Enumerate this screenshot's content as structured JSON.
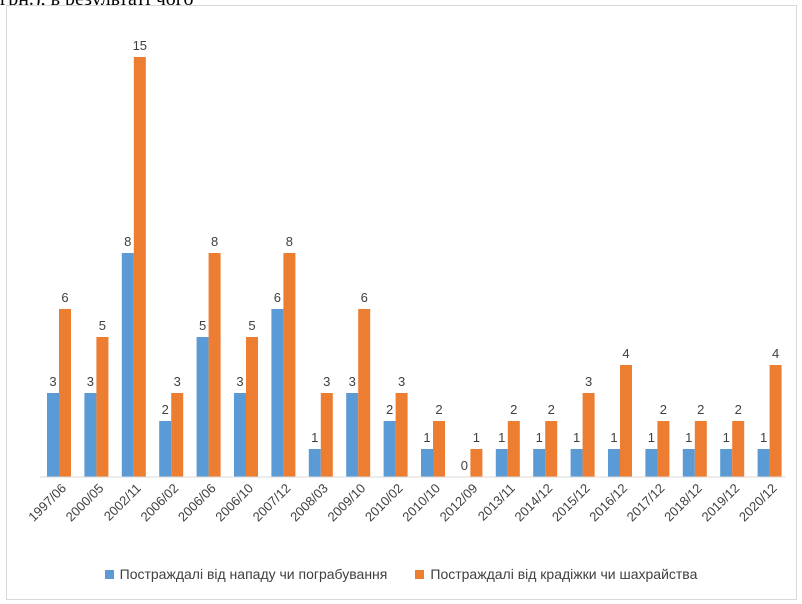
{
  "caption": "грн.), в результаті чого",
  "chart_data": {
    "type": "bar",
    "categories": [
      "1997/06",
      "2000/05",
      "2002/11",
      "2006/02",
      "2006/06",
      "2006/10",
      "2007/12",
      "2008/03",
      "2009/10",
      "2010/02",
      "2010/10",
      "2012/09",
      "2013/11",
      "2014/12",
      "2015/12",
      "2016/12",
      "2017/12",
      "2018/12",
      "2019/12",
      "2020/12"
    ],
    "series": [
      {
        "name": "Постраждалі від нападу чи пограбування",
        "color": "#5b9bd5",
        "values": [
          3,
          3,
          8,
          2,
          5,
          3,
          6,
          1,
          3,
          2,
          1,
          0,
          1,
          1,
          1,
          1,
          1,
          1,
          1,
          1
        ]
      },
      {
        "name": "Постраждалі від крадіжки чи шахрайства",
        "color": "#ed7d31",
        "values": [
          6,
          5,
          15,
          3,
          8,
          5,
          8,
          3,
          6,
          3,
          2,
          1,
          2,
          2,
          3,
          4,
          2,
          2,
          2,
          4
        ]
      }
    ],
    "ylim": [
      0,
      16
    ],
    "grid": false,
    "legend_position": "bottom",
    "data_labels": true
  }
}
